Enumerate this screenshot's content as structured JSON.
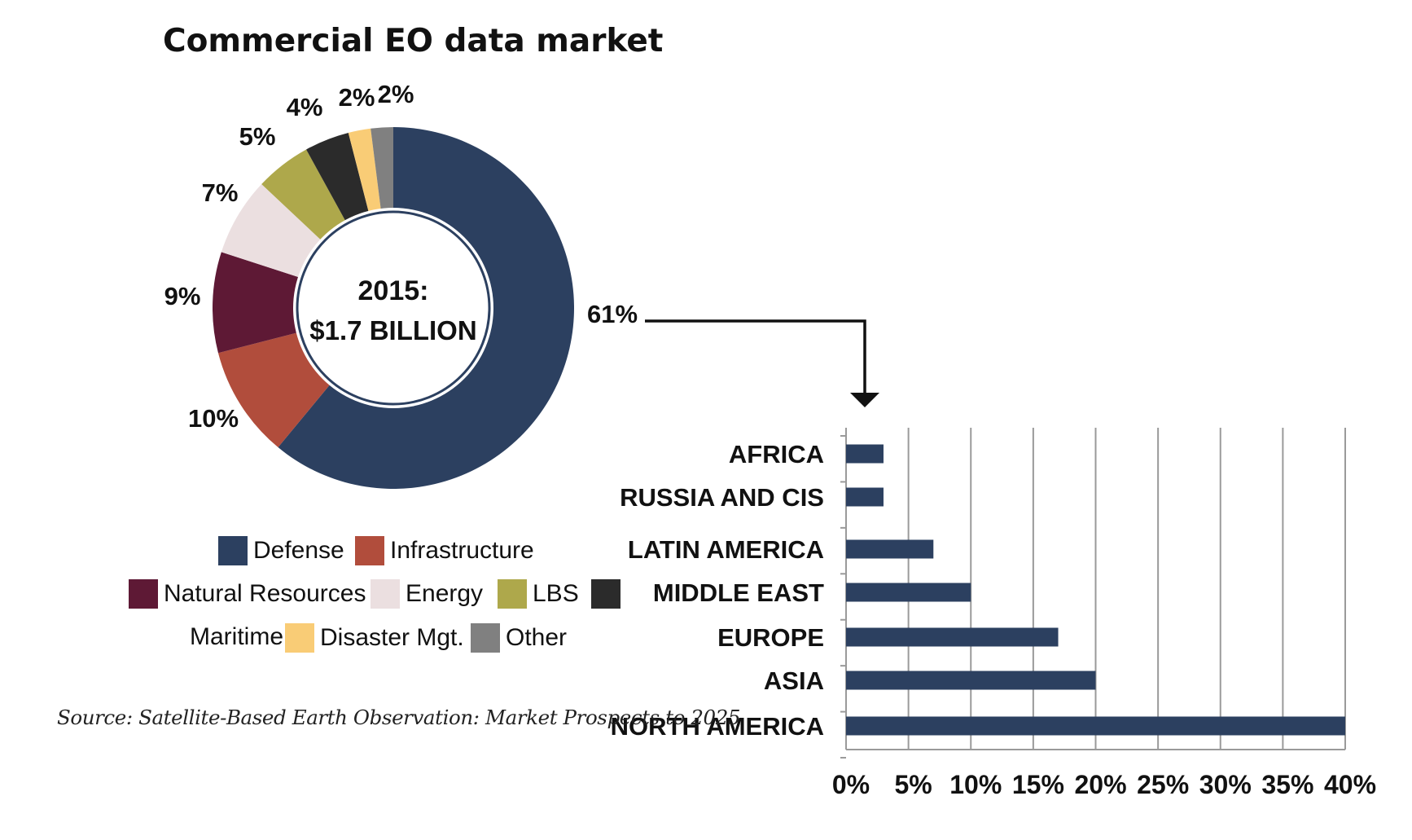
{
  "source": "Source: Satellite-Based Earth Observation: Market Prospects to 2025",
  "colors": {
    "defense": "#2c4060",
    "infrastructure": "#b14d3c",
    "natural_resources": "#5e1935",
    "energy": "#ebdfe0",
    "lbs": "#aea84b",
    "maritime": "#2b2b2b",
    "disaster": "#f9cc76",
    "other": "#808080",
    "bar": "#2c4060",
    "grid": "#9a9a9a"
  },
  "chart_data": [
    {
      "type": "pie",
      "title": "Commercial EO data market",
      "center_label": [
        "2015:",
        "$1.7 BILLION"
      ],
      "slices": [
        {
          "name": "Defense",
          "value": 61,
          "label": "61%",
          "color": "#2c4060"
        },
        {
          "name": "Infrastructure",
          "value": 10,
          "label": "10%",
          "color": "#b14d3c"
        },
        {
          "name": "Natural Resources",
          "value": 9,
          "label": "9%",
          "color": "#5e1935"
        },
        {
          "name": "Energy",
          "value": 7,
          "label": "7%",
          "color": "#ebdfe0"
        },
        {
          "name": "LBS",
          "value": 5,
          "label": "5%",
          "color": "#aea84b"
        },
        {
          "name": "Maritime",
          "value": 4,
          "label": "4%",
          "color": "#2b2b2b"
        },
        {
          "name": "Disaster Mgt.",
          "value": 2,
          "label": "2%",
          "color": "#f9cc76"
        },
        {
          "name": "Other",
          "value": 2,
          "label": "2%",
          "color": "#808080"
        }
      ],
      "legend_placement": "bottom"
    },
    {
      "type": "bar",
      "orientation": "horizontal",
      "categories": [
        "AFRICA",
        "RUSSIA AND CIS",
        "LATIN AMERICA",
        "MIDDLE EAST",
        "EUROPE",
        "ASIA",
        "NORTH AMERICA"
      ],
      "values": [
        3,
        3,
        7,
        10,
        17,
        20,
        40
      ],
      "xlim": [
        0,
        40
      ],
      "x_ticks": [
        "0%",
        "5%",
        "10%",
        "15%",
        "20%",
        "25%",
        "30%",
        "35%",
        "40%"
      ],
      "grid": true
    }
  ]
}
